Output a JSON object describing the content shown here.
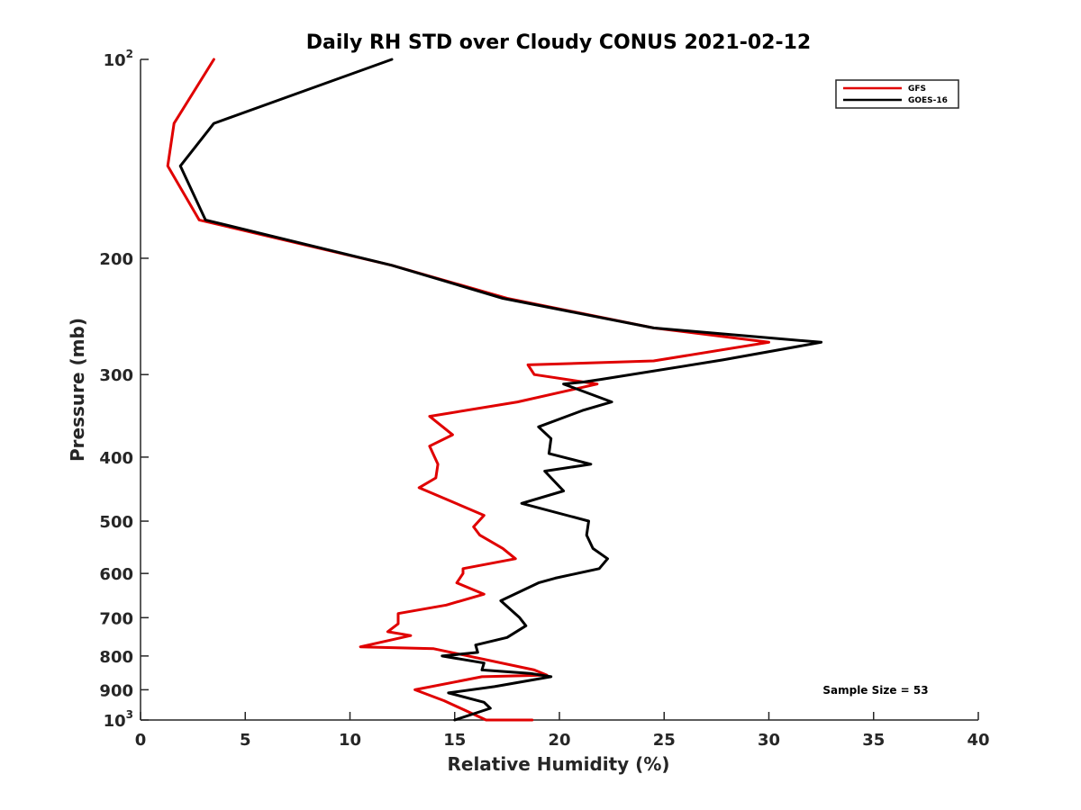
{
  "chart_data": {
    "type": "line",
    "title": "Daily RH STD over Cloudy CONUS 2021-02-12",
    "xlabel": "Relative Humidity (%)",
    "ylabel": "Pressure (mb)",
    "xlim": [
      0,
      40
    ],
    "ylim": [
      100,
      1000
    ],
    "y_scale": "log",
    "y_reversed": true,
    "grid": false,
    "legend_position": "top-right",
    "x_ticks": [
      0,
      5,
      10,
      15,
      20,
      25,
      30,
      35,
      40
    ],
    "x_tick_labels": [
      "0",
      "5",
      "10",
      "15",
      "20",
      "25",
      "30",
      "35",
      "40"
    ],
    "y_ticks": [
      100,
      200,
      300,
      400,
      500,
      600,
      700,
      800,
      900,
      1000
    ],
    "y_tick_labels": [
      {
        "base": "10",
        "exp": "2"
      },
      {
        "base": "200",
        "exp": ""
      },
      {
        "base": "300",
        "exp": ""
      },
      {
        "base": "400",
        "exp": ""
      },
      {
        "base": "500",
        "exp": ""
      },
      {
        "base": "600",
        "exp": ""
      },
      {
        "base": "700",
        "exp": ""
      },
      {
        "base": "800",
        "exp": ""
      },
      {
        "base": "900",
        "exp": ""
      },
      {
        "base": "10",
        "exp": "3"
      }
    ],
    "annotation": "Sample Size = 53",
    "series": [
      {
        "name": "GFS",
        "color": "#e00000",
        "x": [
          3.5,
          1.6,
          1.3,
          2.8,
          12.0,
          17.5,
          24.5,
          30.0,
          24.5,
          18.5,
          18.8,
          21.8,
          18.0,
          13.8,
          14.9,
          13.8,
          14.2,
          14.1,
          13.3,
          16.4,
          15.9,
          16.2,
          17.3,
          17.9,
          15.4,
          15.4,
          15.1,
          16.4,
          14.6,
          12.3,
          12.3,
          11.8,
          12.9,
          10.5,
          14.0,
          18.8,
          19.4,
          16.3,
          13.1,
          14.5,
          16.5,
          18.7
        ],
        "y": [
          100,
          125,
          145,
          175,
          205,
          230,
          255,
          268,
          286,
          290,
          300,
          310,
          330,
          347,
          370,
          385,
          410,
          430,
          445,
          490,
          510,
          525,
          550,
          570,
          590,
          600,
          620,
          645,
          670,
          690,
          715,
          735,
          745,
          775,
          780,
          840,
          855,
          860,
          900,
          935,
          1000,
          1000
        ]
      },
      {
        "name": "GOES-16",
        "color": "#000000",
        "x": [
          12.0,
          3.5,
          1.9,
          3.1,
          12.0,
          17.3,
          24.5,
          32.5,
          27.8,
          22.0,
          21.1,
          20.2,
          22.5,
          21.1,
          19.0,
          19.6,
          19.5,
          21.5,
          19.3,
          20.2,
          18.2,
          21.4,
          21.3,
          21.6,
          22.3,
          21.9,
          19.8,
          19.0,
          17.2,
          18.1,
          18.4,
          17.5,
          16.0,
          16.1,
          14.4,
          16.4,
          16.3,
          18.6,
          19.6,
          16.9,
          14.7,
          16.4,
          16.7,
          15.0
        ],
        "y": [
          100,
          125,
          145,
          175,
          205,
          230,
          255,
          268,
          285,
          305,
          308,
          310,
          330,
          340,
          360,
          375,
          395,
          410,
          420,
          450,
          470,
          500,
          525,
          550,
          570,
          590,
          610,
          620,
          660,
          700,
          720,
          750,
          770,
          790,
          800,
          820,
          840,
          850,
          860,
          890,
          910,
          940,
          960,
          1000
        ]
      }
    ]
  }
}
